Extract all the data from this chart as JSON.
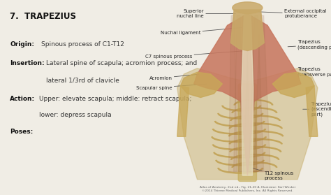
{
  "title_number": "7.",
  "title_muscle": "TRAPEZIUS",
  "bg_color": "#f0ede5",
  "left_bg": "#f0ede5",
  "right_bg": "#f0ede5",
  "fields": [
    {
      "label": "Origin:",
      "text": "Spinous process of C1-T12",
      "indent": false
    },
    {
      "label": "Insertion:",
      "text_line1": "Lateral spine of scapula; acromion process; and",
      "text_line2": "lateral 1/3rd of clavicle",
      "indent": true
    },
    {
      "label": "Action:",
      "text_line1": "Upper: elevate scapula; middle: retract scapula;",
      "text_line2": "lower: depress scapula",
      "indent": true
    },
    {
      "label": "Poses:",
      "text": "",
      "indent": false
    }
  ],
  "title_color": "#111111",
  "label_color": "#111111",
  "text_color": "#333333",
  "ann_color": "#222222",
  "caption_text": "Atlas of Anatomy, 2nd ed., Fig. 21-20 A. Illustrator: Karl Wesker\n©2014 Thieme Medical Publishers, Inc. All Rights Reserved.",
  "muscle_color": "#c87860",
  "bone_color": "#c8a858",
  "skin_color": "#c8a868",
  "rib_color": "#c0a050",
  "tendon_color": "#b8a870",
  "spine_color": "#d8c898",
  "shadow_color": "#a06848"
}
